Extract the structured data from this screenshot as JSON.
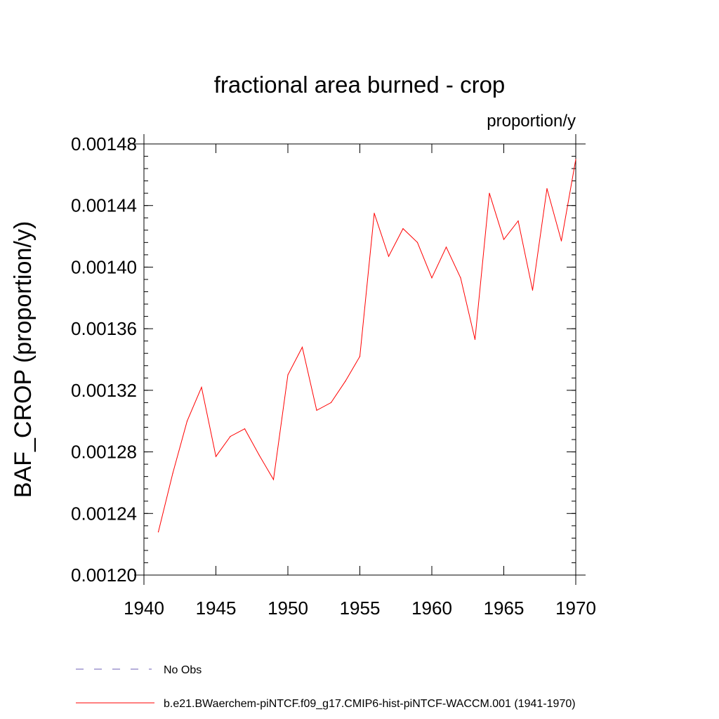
{
  "chart_data": {
    "type": "line",
    "title": "fractional area burned - crop",
    "units": "proportion/y",
    "ylabel": "BAF_CROP  (proportion/y)",
    "xlabel": "",
    "xlim": [
      1940,
      1970
    ],
    "ylim": [
      0.0012,
      0.00148
    ],
    "xticks": [
      {
        "value": 1940,
        "label": "1940"
      },
      {
        "value": 1945,
        "label": "1945"
      },
      {
        "value": 1950,
        "label": "1950"
      },
      {
        "value": 1955,
        "label": "1955"
      },
      {
        "value": 1960,
        "label": "1960"
      },
      {
        "value": 1965,
        "label": "1965"
      },
      {
        "value": 1970,
        "label": "1970"
      }
    ],
    "yticks": [
      {
        "value": 0.0012,
        "label": "0.00120"
      },
      {
        "value": 0.00124,
        "label": "0.00124"
      },
      {
        "value": 0.00128,
        "label": "0.00128"
      },
      {
        "value": 0.00132,
        "label": "0.00132"
      },
      {
        "value": 0.00136,
        "label": "0.00136"
      },
      {
        "value": 0.0014,
        "label": "0.00140"
      },
      {
        "value": 0.00144,
        "label": "0.00144"
      },
      {
        "value": 0.00148,
        "label": "0.00148"
      }
    ],
    "grid": false,
    "legend_position": "bottom",
    "series": [
      {
        "name": "b.e21.BWaerchem-piNTCF.f09_g17.CMIP6-hist-piNTCF-WACCM.001 (1941-1970)",
        "color": "#ff0000",
        "line_style": "solid",
        "x": [
          1941,
          1942,
          1943,
          1944,
          1945,
          1946,
          1947,
          1948,
          1949,
          1950,
          1951,
          1952,
          1953,
          1954,
          1955,
          1956,
          1957,
          1958,
          1959,
          1960,
          1961,
          1962,
          1963,
          1964,
          1965,
          1966,
          1967,
          1968,
          1969,
          1970
        ],
        "y": [
          0.001228,
          0.001266,
          0.0013,
          0.001322,
          0.001277,
          0.00129,
          0.001295,
          0.001278,
          0.001262,
          0.00133,
          0.001348,
          0.001307,
          0.001312,
          0.001326,
          0.001342,
          0.001435,
          0.001407,
          0.001425,
          0.001416,
          0.001393,
          0.001413,
          0.001393,
          0.001353,
          0.001448,
          0.001418,
          0.00143,
          0.001385,
          0.001451,
          0.001417,
          0.00147
        ]
      }
    ],
    "legend": [
      {
        "label": "No Obs",
        "color": "#8a7fc4",
        "line_style": "dashed"
      },
      {
        "label": "b.e21.BWaerchem-piNTCF.f09_g17.CMIP6-hist-piNTCF-WACCM.001 (1941-1970)",
        "color": "#ff0000",
        "line_style": "solid"
      }
    ]
  }
}
